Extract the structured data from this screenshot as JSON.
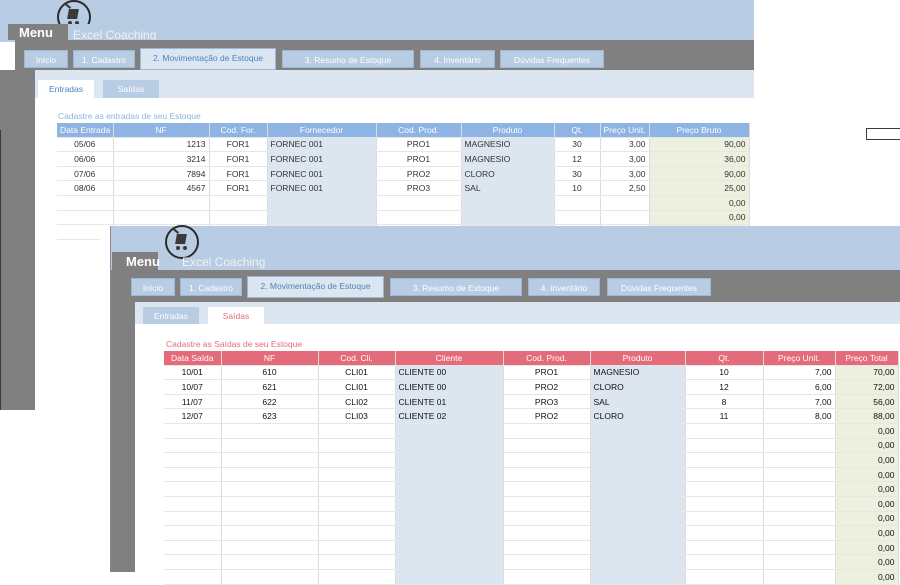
{
  "app": {
    "menu_label": "Menu",
    "brand": "Excel Coaching"
  },
  "tabs": [
    "Início",
    "1. Cadastro",
    "2. Movimentação de Estoque",
    "3. Resumo de Estoque",
    "4. Inventário",
    "Dúvidas Frequentes"
  ],
  "subtabs": {
    "entradas": "Entradas",
    "saidas": "Saídas"
  },
  "back_window": {
    "caption": "Cadastre as entradas de seu Estoque",
    "headers": [
      "Data Entrada",
      "NF",
      "Cod. For.",
      "Fornecedor",
      "Cod. Prod.",
      "Produto",
      "Qt.",
      "Preço Unit.",
      "Preço Bruto"
    ],
    "rows": [
      [
        "05/06",
        "1213",
        "FOR1",
        "FORNEC 001",
        "PRO1",
        "MAGNESIO",
        "30",
        "3,00",
        "90,00"
      ],
      [
        "06/06",
        "3214",
        "FOR1",
        "FORNEC 001",
        "PRO1",
        "MAGNESIO",
        "12",
        "3,00",
        "36,00"
      ],
      [
        "07/06",
        "7894",
        "FOR1",
        "FORNEC 001",
        "PRO2",
        "CLORO",
        "30",
        "3,00",
        "90,00"
      ],
      [
        "08/06",
        "4567",
        "FOR1",
        "FORNEC 001",
        "PRO3",
        "SAL",
        "10",
        "2,50",
        "25,00"
      ],
      [
        "",
        "",
        "",
        "",
        "",
        "",
        "",
        "",
        "0,00"
      ],
      [
        "",
        "",
        "",
        "",
        "",
        "",
        "",
        "",
        "0,00"
      ],
      [
        "",
        "",
        "",
        "",
        "",
        "",
        "",
        "",
        "0,00"
      ]
    ]
  },
  "front_window": {
    "caption": "Cadastre as Saídas de seu Estoque",
    "headers": [
      "Data Saída",
      "NF",
      "Cod. Cli.",
      "Cliente",
      "Cod. Prod.",
      "Produto",
      "Qt.",
      "Preço Unit.",
      "Preço Total"
    ],
    "rows": [
      [
        "10/01",
        "610",
        "CLI01",
        "CLIENTE 00",
        "PRO1",
        "MAGNESIO",
        "10",
        "7,00",
        "70,00"
      ],
      [
        "10/07",
        "621",
        "CLI01",
        "CLIENTE 00",
        "PRO2",
        "CLORO",
        "12",
        "6,00",
        "72,00"
      ],
      [
        "11/07",
        "622",
        "CLI02",
        "CLIENTE 01",
        "PRO3",
        "SAL",
        "8",
        "7,00",
        "56,00"
      ],
      [
        "12/07",
        "623",
        "CLI03",
        "CLIENTE 02",
        "PRO2",
        "CLORO",
        "11",
        "8,00",
        "88,00"
      ],
      [
        "",
        "",
        "",
        "",
        "",
        "",
        "",
        "",
        "0,00"
      ],
      [
        "",
        "",
        "",
        "",
        "",
        "",
        "",
        "",
        "0,00"
      ],
      [
        "",
        "",
        "",
        "",
        "",
        "",
        "",
        "",
        "0,00"
      ],
      [
        "",
        "",
        "",
        "",
        "",
        "",
        "",
        "",
        "0,00"
      ],
      [
        "",
        "",
        "",
        "",
        "",
        "",
        "",
        "",
        "0,00"
      ],
      [
        "",
        "",
        "",
        "",
        "",
        "",
        "",
        "",
        "0,00"
      ],
      [
        "",
        "",
        "",
        "",
        "",
        "",
        "",
        "",
        "0,00"
      ],
      [
        "",
        "",
        "",
        "",
        "",
        "",
        "",
        "",
        "0,00"
      ],
      [
        "",
        "",
        "",
        "",
        "",
        "",
        "",
        "",
        "0,00"
      ],
      [
        "",
        "",
        "",
        "",
        "",
        "",
        "",
        "",
        "0,00"
      ],
      [
        "",
        "",
        "",
        "",
        "",
        "",
        "",
        "",
        "0,00"
      ]
    ]
  },
  "colors": {
    "header_blue": "#8db4e2",
    "header_red": "#e46c7a",
    "light_blue": "#dce6f1",
    "band_blue": "#b8cce4",
    "light_green": "#ebf1de",
    "gray": "#808080",
    "caption_blue": "#8db4e2",
    "caption_red": "#e46c7a"
  }
}
